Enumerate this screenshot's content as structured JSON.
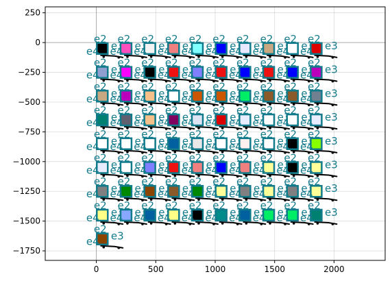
{
  "chart_data": {
    "type": "scatter",
    "title": "",
    "xlabel": "",
    "ylabel": "",
    "xlim": [
      -430,
      2430
    ],
    "ylim": [
      -1830,
      300
    ],
    "xticks": [
      0,
      500,
      1000,
      1500,
      2000
    ],
    "yticks": [
      250,
      0,
      -250,
      -500,
      -750,
      -1000,
      -1250,
      -1500,
      -1750
    ],
    "grid": true,
    "node_labels": [
      "e2",
      "e3",
      "e4"
    ],
    "node_edge_color": "#117a8b",
    "grid_x": [
      50,
      250,
      450,
      650,
      850,
      1050,
      1250,
      1450,
      1650,
      1850
    ],
    "grid_y": [
      -50,
      -250,
      -450,
      -650,
      -850,
      -1050,
      -1250,
      -1450,
      -1650
    ],
    "rows": [
      [
        "#000000",
        "#ff4fbf",
        "#f3f3f3",
        "#f08080",
        "#7fffff",
        "#0000ff",
        "#e8e8ff",
        "#c8a882",
        "#ffffff",
        "#dd0000"
      ],
      [
        "#8fa0d0",
        "#ff00ff",
        "#000000",
        "#ee1111",
        "#7f7fff",
        "#ee1111",
        "#0000ff",
        "#ee1111",
        "#0000ff",
        "#bb00bb"
      ],
      [
        "#c8a882",
        "#bb00bb",
        "#f5c08a",
        "#ffffff",
        "#cc5500",
        "#cc5500",
        "#00ee66",
        "#8b5a2b",
        "#8b5a2b",
        "#708090"
      ],
      [
        "#008070",
        "#606070",
        "#f5c08a",
        "#800060",
        "#dde5f5",
        "#dd0000",
        "#e8ecff",
        "#ffffff",
        "#ffffff",
        "#e8ecff"
      ],
      [
        "#ffffff",
        "#ffffff",
        "#ffffff",
        "#0060a0",
        "#e8e8e8",
        "#ffffff",
        "#fff0f0",
        "#ffffff",
        "#000000",
        "#88ff00"
      ],
      [
        "#e8ecff",
        "#ffffff",
        "#7f7fff",
        "#ee1111",
        "#f08080",
        "#0000ff",
        "#f08080",
        "#ffff99",
        "#000000",
        "#ffff99"
      ],
      [
        "#808080",
        "#008800",
        "#8b4500",
        "#8b5a2b",
        "#008800",
        "#ffff99",
        "#808080",
        "#ffff99",
        "#808080",
        "#ffff99"
      ],
      [
        "#ffff88",
        "#88a8ff",
        "#0060a0",
        "#ffff88",
        "#000000",
        "#008b8b",
        "#0060a0",
        "#00ee66",
        "#00ee66",
        "#008070"
      ],
      [
        "#8b4500",
        null,
        null,
        null,
        null,
        null,
        null,
        null,
        null,
        null
      ]
    ]
  }
}
